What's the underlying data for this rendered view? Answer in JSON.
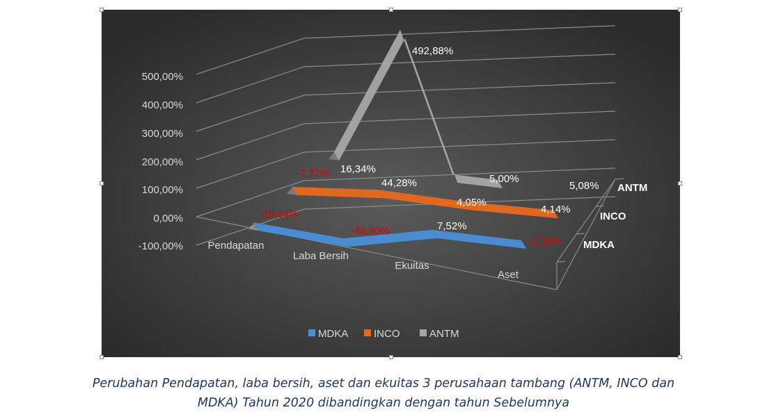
{
  "chart_data": {
    "type": "line",
    "title": "",
    "style": "3d",
    "categories": [
      "Pendapatan",
      "Laba Bersih",
      "Ekuitas",
      "Aset"
    ],
    "y_ticks": [
      "500,00%",
      "400,00%",
      "300,00%",
      "200,00%",
      "100,00%",
      "0,00%",
      "-100,00%"
    ],
    "ylim": [
      -100,
      500
    ],
    "series": [
      {
        "name": "MDKA",
        "values": [
          -19.94,
          -48.9,
          7.52,
          -2.28
        ],
        "labels": [
          "-19,94%",
          "-48,90%",
          "7,52%",
          "-2,28%"
        ],
        "color": "#4a8fd8"
      },
      {
        "name": "INCO",
        "values": [
          -2.21,
          16.34,
          4.05,
          4.14
        ],
        "labels": [
          "-2,21%",
          "16,34%",
          "4,05%",
          "4,14%"
        ],
        "color": "#e9691d"
      },
      {
        "name": "ANTM",
        "values": [
          44.28,
          492.88,
          5.0,
          5.08
        ],
        "labels": [
          "44,28%",
          "492,88%",
          "5,00%",
          "5,08%"
        ],
        "color": "#a6a6a6"
      }
    ],
    "label_colors": {
      "negative": "#e00000",
      "positive": "#ffffff"
    },
    "legend": {
      "position": "bottom"
    },
    "grid": true
  },
  "caption": {
    "line1": "Perubahan Pendapatan, laba bersih, aset dan ekuitas 3 perusahaan tambang (ANTM, INCO dan",
    "line2": "MDKA) Tahun 2020 dibandingkan dengan tahun Sebelumnya"
  }
}
